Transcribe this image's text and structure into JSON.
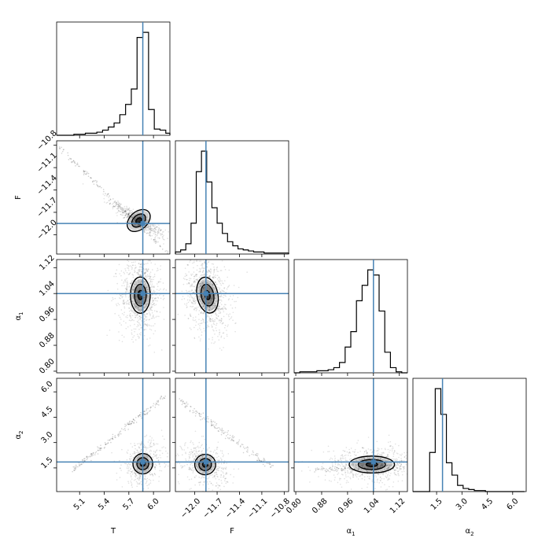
{
  "chart_data": {
    "type": "corner",
    "parameters": [
      {
        "key": "T",
        "label": "T",
        "label_sub": "",
        "range": [
          4.82,
          6.2
        ],
        "ticks": [
          5.1,
          5.4,
          5.7,
          6.0
        ],
        "tick_labels": [
          "5.1",
          "5.4",
          "5.7",
          "6.0"
        ],
        "truth": 5.87
      },
      {
        "key": "F",
        "label": "F",
        "label_sub": "",
        "range": [
          -12.26,
          -10.74
        ],
        "ticks": [
          -12.0,
          -11.7,
          -11.4,
          -11.1,
          -10.8
        ],
        "tick_labels": [
          "−12.0",
          "−11.7",
          "−11.4",
          "−11.1",
          "−10.8"
        ],
        "truth": -11.85
      },
      {
        "key": "alpha1",
        "label": "α",
        "label_sub": "1",
        "range": [
          0.795,
          1.145
        ],
        "ticks": [
          0.8,
          0.88,
          0.96,
          1.04,
          1.12
        ],
        "tick_labels": [
          "0.80",
          "0.88",
          "0.96",
          "1.04",
          "1.12"
        ],
        "truth": 1.04
      },
      {
        "key": "alpha2",
        "label": "α",
        "label_sub": "2",
        "range": [
          0.1,
          6.8
        ],
        "ticks": [
          1.5,
          3.0,
          4.5,
          6.0
        ],
        "tick_labels": [
          "1.5",
          "3.0",
          "4.5",
          "6.0"
        ],
        "truth": 1.85
      }
    ],
    "histograms": [
      {
        "param": "T",
        "bin_edges": [
          4.82,
          4.89,
          4.96,
          5.03,
          5.1,
          5.17,
          5.24,
          5.31,
          5.38,
          5.45,
          5.52,
          5.59,
          5.66,
          5.73,
          5.8,
          5.87,
          5.94,
          6.01,
          6.08,
          6.15,
          6.2
        ],
        "counts": [
          0,
          0,
          0,
          1,
          1,
          2,
          2,
          3,
          5,
          8,
          12,
          20,
          30,
          45,
          95,
          100,
          25,
          6,
          5,
          2
        ]
      },
      {
        "param": "F",
        "bin_edges": [
          -12.26,
          -12.19,
          -12.12,
          -12.05,
          -11.98,
          -11.91,
          -11.84,
          -11.77,
          -11.7,
          -11.63,
          -11.56,
          -11.49,
          -11.42,
          -11.35,
          -11.28,
          -11.21,
          -11.14,
          -11.07,
          -11.0,
          -10.93,
          -10.74
        ],
        "counts": [
          2,
          4,
          10,
          30,
          80,
          100,
          70,
          45,
          30,
          20,
          12,
          8,
          5,
          4,
          3,
          2,
          2,
          1,
          1,
          1
        ]
      },
      {
        "param": "alpha1",
        "bin_edges": [
          0.795,
          0.8125,
          0.83,
          0.8475,
          0.865,
          0.8825,
          0.9,
          0.9175,
          0.935,
          0.9525,
          0.97,
          0.9875,
          1.005,
          1.0225,
          1.04,
          1.0575,
          1.075,
          1.0925,
          1.11,
          1.1275,
          1.145
        ],
        "counts": [
          0,
          1,
          1,
          1,
          2,
          2,
          3,
          5,
          10,
          25,
          40,
          70,
          85,
          100,
          95,
          60,
          20,
          5,
          1,
          0
        ]
      },
      {
        "param": "alpha2",
        "bin_edges": [
          0.1,
          0.43,
          0.76,
          1.09,
          1.42,
          1.75,
          2.08,
          2.41,
          2.74,
          3.07,
          3.4,
          3.73,
          4.06,
          4.39,
          4.72,
          5.05,
          5.38,
          5.71,
          6.04,
          6.37,
          6.7
        ],
        "counts": [
          0,
          0,
          0,
          38,
          100,
          75,
          28,
          16,
          6,
          3,
          2,
          1,
          1,
          0,
          0,
          0,
          0,
          0,
          0,
          0
        ]
      }
    ],
    "pairs": [
      {
        "x": "T",
        "y": "F",
        "center": [
          5.82,
          -11.81
        ],
        "sigma": [
          0.08,
          0.06
        ],
        "rho": -0.92,
        "contour_levels": [
          0.5,
          1.2,
          2.0
        ],
        "scatter_n": 500,
        "tail": {
          "from": [
            4.85,
            -10.82
          ],
          "to": [
            6.18,
            -12.26
          ],
          "n": 140,
          "spread": 0.06
        }
      },
      {
        "x": "T",
        "y": "alpha1",
        "center": [
          5.84,
          1.035
        ],
        "sigma": [
          0.06,
          0.028
        ],
        "rho": 0.0,
        "contour_levels": [
          0.5,
          1.2,
          2.0
        ],
        "scatter_n": 900,
        "tail": null
      },
      {
        "x": "F",
        "y": "alpha1",
        "center": [
          -11.83,
          1.035
        ],
        "sigma": [
          0.07,
          0.028
        ],
        "rho": -0.25,
        "contour_levels": [
          0.5,
          1.2,
          2.0
        ],
        "scatter_n": 900,
        "tail": null
      },
      {
        "x": "T",
        "y": "alpha2",
        "center": [
          5.87,
          1.75
        ],
        "sigma": [
          0.06,
          0.3
        ],
        "rho": 0.2,
        "contour_levels": [
          0.5,
          1.2,
          2.0
        ],
        "scatter_n": 500,
        "tail": {
          "from": [
            5.0,
            1.3
          ],
          "to": [
            6.15,
            5.8
          ],
          "n": 180,
          "spread": 0.08
        }
      },
      {
        "x": "F",
        "y": "alpha2",
        "center": [
          -11.86,
          1.7
        ],
        "sigma": [
          0.07,
          0.3
        ],
        "rho": -0.25,
        "contour_levels": [
          0.5,
          1.2,
          2.0
        ],
        "scatter_n": 500,
        "tail": {
          "from": [
            -12.2,
            5.5
          ],
          "to": [
            -10.9,
            1.3
          ],
          "n": 160,
          "spread": 0.1
        }
      },
      {
        "x": "alpha1",
        "y": "alpha2",
        "center": [
          1.035,
          1.7
        ],
        "sigma": [
          0.035,
          0.25
        ],
        "rho": 0.0,
        "contour_levels": [
          0.5,
          1.2,
          2.0
        ],
        "scatter_n": 700,
        "tail": {
          "from": [
            0.86,
            1.4
          ],
          "to": [
            1.13,
            1.6
          ],
          "n": 120,
          "spread": 0.1
        }
      }
    ],
    "truth_color": "#4682b4",
    "grid": false,
    "legend": "none"
  }
}
